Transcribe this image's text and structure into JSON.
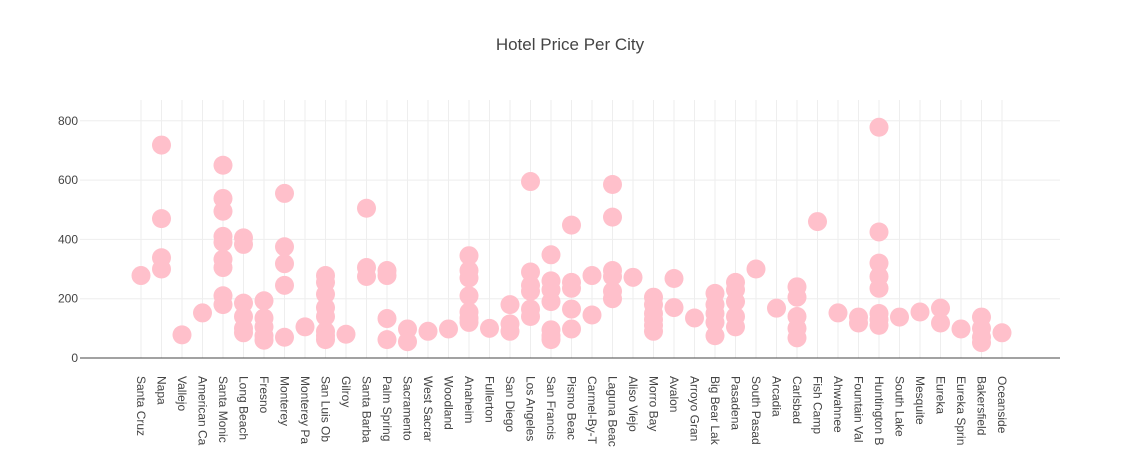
{
  "chart_data": {
    "type": "scatter",
    "title": "Hotel Price Per City",
    "xlabel": "",
    "ylabel": "",
    "ylim": [
      0,
      870
    ],
    "y_ticks": [
      0,
      200,
      400,
      600,
      800
    ],
    "grid": true,
    "legend": "none",
    "marker_color": "#ffc0cb",
    "categories": [
      "Santa Cruz",
      "Napa",
      "Vallejo",
      "American Canyon",
      "Santa Monica",
      "Long Beach",
      "Fresno",
      "Monterey",
      "Monterey Park",
      "San Luis Obispo",
      "Gilroy",
      "Santa Barbara",
      "Palm Springs",
      "Sacramento",
      "West Sacramento",
      "Woodland",
      "Anaheim",
      "Fullerton",
      "San Diego",
      "Los Angeles",
      "San Francisco",
      "Pismo Beach",
      "Carmel-By-The-Sea",
      "Laguna Beach",
      "Aliso Viejo",
      "Morro Bay",
      "Avalon",
      "Arroyo Grande",
      "Big Bear Lake",
      "Pasadena",
      "South Pasadena",
      "Arcadia",
      "Carlsbad",
      "Fish Camp",
      "Ahwahnee",
      "Fountain Valley",
      "Huntington Beach",
      "South Lake Tahoe",
      "Mesquite",
      "Eureka",
      "Eureka Springs",
      "Bakersfield",
      "Oceanside"
    ],
    "tick_labels": [
      "Santa Cruz",
      "Napa",
      "Vallejo",
      "American Ca",
      "Santa Monic",
      "Long Beach",
      "Fresno",
      "Monterey",
      "Monterey Pa",
      "San Luis Ob",
      "Gilroy",
      "Santa Barba",
      "Palm Spring",
      "Sacramento",
      "West Sacrar",
      "Woodland",
      "Anaheim",
      "Fullerton",
      "San Diego",
      "Los Angeles",
      "San Francis",
      "Pismo Beac",
      "Carmel-By-T",
      "Laguna Beac",
      "Aliso Viejo",
      "Morro Bay",
      "Avalon",
      "Arroyo Gran",
      "Big Bear Lak",
      "Pasadena",
      "South Pasad",
      "Arcadia",
      "Carlsbad",
      "Fish Camp",
      "Ahwahnee",
      "Fountain Val",
      "Huntington B",
      "South Lake",
      "Mesquite",
      "Eureka",
      "Eureka Sprin",
      "Bakersfield",
      "Oceanside"
    ],
    "points": [
      {
        "x": "Santa Cruz",
        "y": [
          278
        ]
      },
      {
        "x": "Napa",
        "y": [
          718,
          470,
          338,
          300
        ]
      },
      {
        "x": "Vallejo",
        "y": [
          78
        ]
      },
      {
        "x": "American Canyon",
        "y": [
          152
        ]
      },
      {
        "x": "Santa Monica",
        "y": [
          650,
          538,
          495,
          410,
          390,
          333,
          305,
          210,
          180
        ]
      },
      {
        "x": "Long Beach",
        "y": [
          405,
          383,
          185,
          140,
          100,
          85
        ]
      },
      {
        "x": "Fresno",
        "y": [
          193,
          135,
          105,
          75,
          60
        ]
      },
      {
        "x": "Monterey",
        "y": [
          555,
          375,
          318,
          245,
          70
        ]
      },
      {
        "x": "Monterey Park",
        "y": [
          105
        ]
      },
      {
        "x": "San Luis Obispo",
        "y": [
          278,
          255,
          215,
          170,
          140,
          90,
          75,
          62
        ]
      },
      {
        "x": "Gilroy",
        "y": [
          80
        ]
      },
      {
        "x": "Santa Barbara",
        "y": [
          505,
          305,
          275
        ]
      },
      {
        "x": "Palm Springs",
        "y": [
          295,
          278,
          133,
          62
        ]
      },
      {
        "x": "Sacramento",
        "y": [
          98,
          55
        ]
      },
      {
        "x": "West Sacramento",
        "y": [
          90
        ]
      },
      {
        "x": "Woodland",
        "y": [
          98
        ]
      },
      {
        "x": "Anaheim",
        "y": [
          345,
          295,
          270,
          210,
          155,
          135,
          120
        ]
      },
      {
        "x": "Fullerton",
        "y": [
          100
        ]
      },
      {
        "x": "San Diego",
        "y": [
          180,
          115,
          90
        ]
      },
      {
        "x": "Los Angeles",
        "y": [
          595,
          290,
          245,
          225,
          165,
          140
        ]
      },
      {
        "x": "San Francisco",
        "y": [
          348,
          260,
          230,
          190,
          95,
          75,
          62
        ]
      },
      {
        "x": "Pismo Beach",
        "y": [
          448,
          255,
          235,
          165,
          98
        ]
      },
      {
        "x": "Carmel-By-The-Sea",
        "y": [
          278,
          145
        ]
      },
      {
        "x": "Laguna Beach",
        "y": [
          585,
          475,
          295,
          275,
          225,
          200
        ]
      },
      {
        "x": "Aliso Viejo",
        "y": [
          272
        ]
      },
      {
        "x": "Morro Bay",
        "y": [
          205,
          180,
          150,
          130,
          110,
          90
        ]
      },
      {
        "x": "Avalon",
        "y": [
          268,
          170
        ]
      },
      {
        "x": "Arroyo Grande",
        "y": [
          135
        ]
      },
      {
        "x": "Big Bear Lake",
        "y": [
          218,
          180,
          150,
          120,
          75
        ]
      },
      {
        "x": "Pasadena",
        "y": [
          255,
          230,
          190,
          140,
          105
        ]
      },
      {
        "x": "South Pasadena",
        "y": [
          300
        ]
      },
      {
        "x": "Arcadia",
        "y": [
          168
        ]
      },
      {
        "x": "Carlsbad",
        "y": [
          240,
          205,
          140,
          100,
          68
        ]
      },
      {
        "x": "Fish Camp",
        "y": [
          460
        ]
      },
      {
        "x": "Ahwahnee",
        "y": [
          152
        ]
      },
      {
        "x": "Fountain Valley",
        "y": [
          138,
          118
        ]
      },
      {
        "x": "Huntington Beach",
        "y": [
          778,
          425,
          320,
          275,
          235,
          150,
          130,
          110
        ]
      },
      {
        "x": "South Lake Tahoe",
        "y": [
          138
        ]
      },
      {
        "x": "Mesquite",
        "y": [
          155
        ]
      },
      {
        "x": "Eureka",
        "y": [
          168,
          118
        ]
      },
      {
        "x": "Eureka Springs",
        "y": [
          98
        ]
      },
      {
        "x": "Bakersfield",
        "y": [
          138,
          100,
          70,
          52
        ]
      },
      {
        "x": "Oceanside",
        "y": [
          85
        ]
      }
    ]
  }
}
